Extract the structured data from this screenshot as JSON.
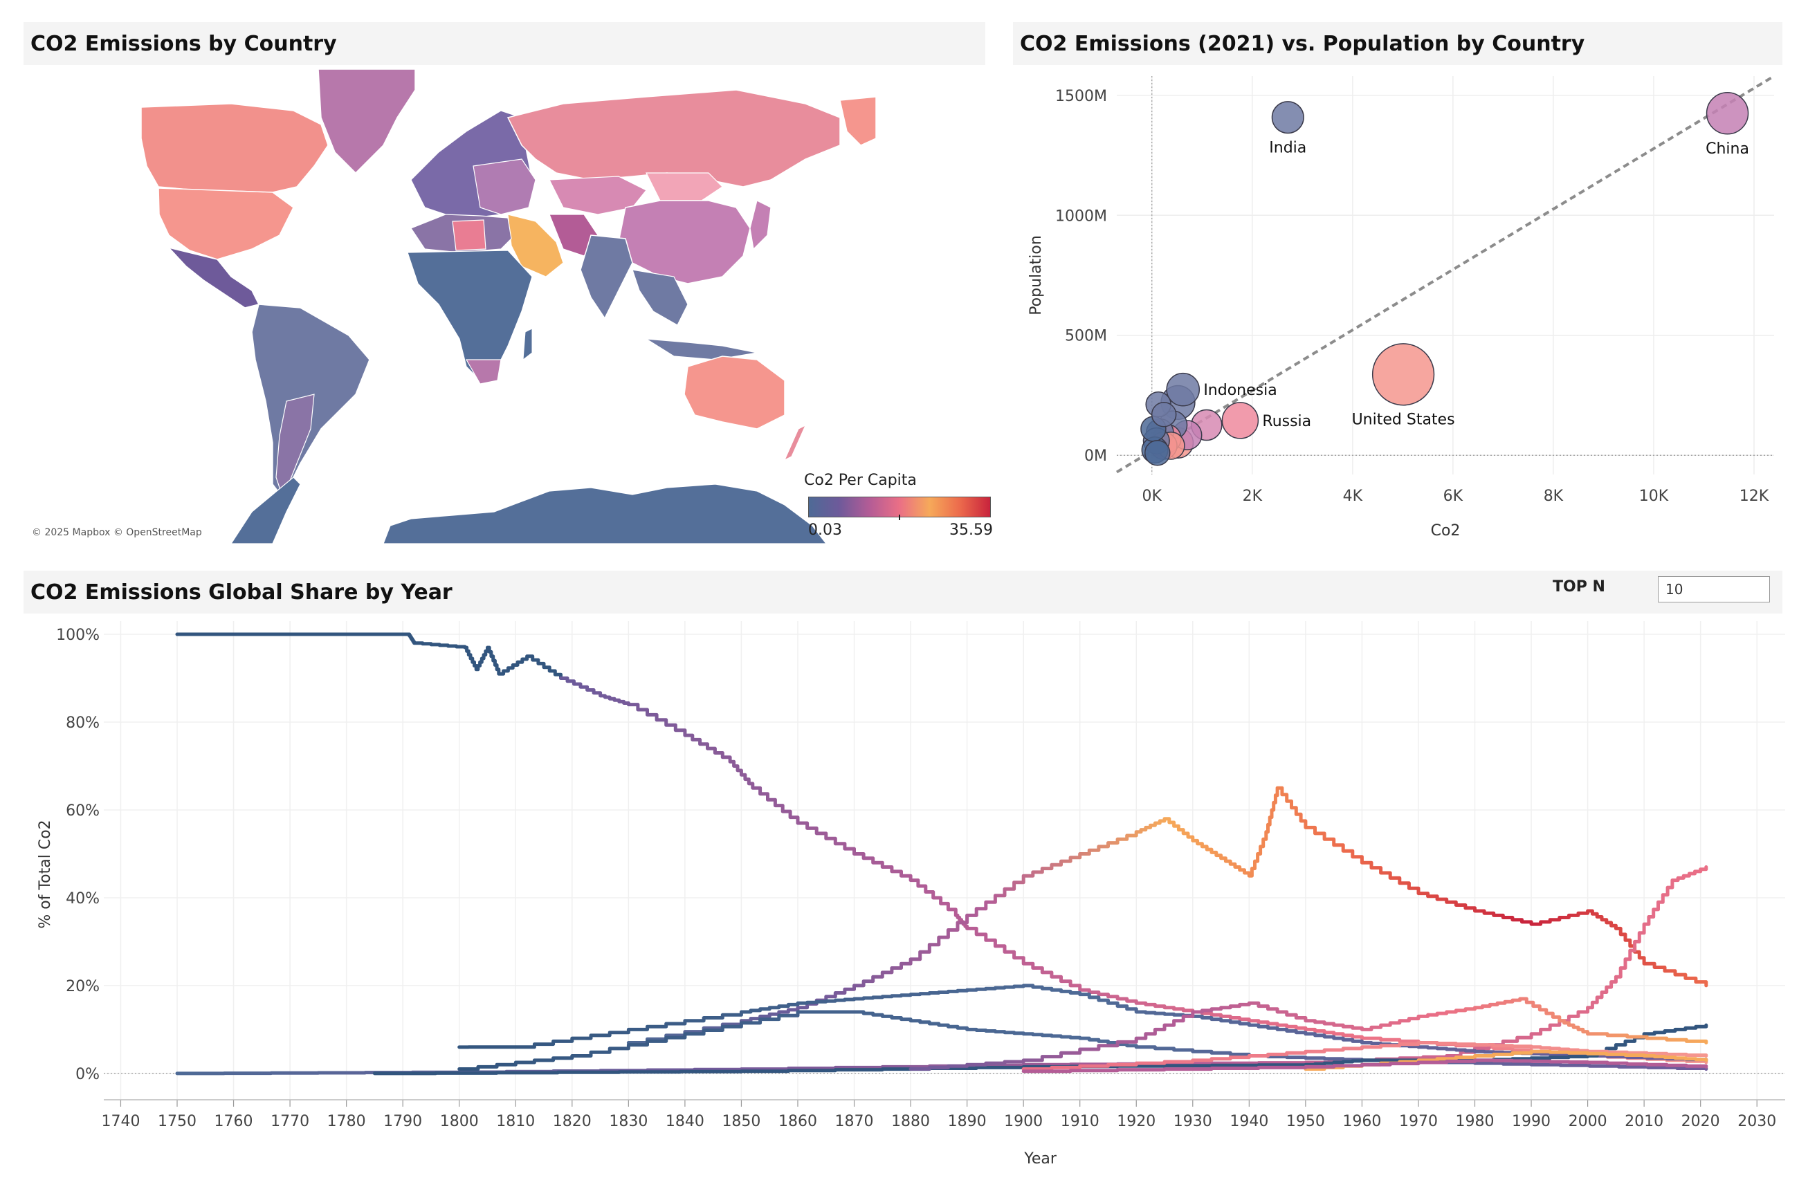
{
  "map_panel": {
    "title": "CO2 Emissions by Country",
    "copyright": "© 2025 Mapbox © OpenStreetMap",
    "legend": {
      "title": "Co2 Per Capita",
      "min": "0.03",
      "max": "35.59",
      "colors": [
        "#4e6a96",
        "#6e5a9a",
        "#b35c96",
        "#ea6f86",
        "#f6a95a",
        "#ec6a4c",
        "#c8233c"
      ]
    }
  },
  "scatter_panel": {
    "title": "CO2 Emissions (2021) vs. Population by Country",
    "chart_data": {
      "type": "scatter",
      "xlabel": "Co2",
      "ylabel": "Population",
      "x_ticks": [
        "0K",
        "2K",
        "4K",
        "6K",
        "8K",
        "10K",
        "12K"
      ],
      "y_ticks": [
        "0M",
        "500M",
        "1000M",
        "1500M"
      ],
      "xlim": [
        -700,
        12400
      ],
      "ylim": [
        -80,
        1580
      ],
      "trend_line": true,
      "points": [
        {
          "label": "China",
          "x": 11470,
          "y": 1425,
          "size": 1.0,
          "color": "#c480b4"
        },
        {
          "label": "India",
          "x": 2710,
          "y": 1408,
          "size": 0.55,
          "color": "#6f7aa3"
        },
        {
          "label": "United States",
          "x": 5010,
          "y": 337,
          "size": 1.9,
          "color": "#f5968e"
        },
        {
          "label": "Indonesia",
          "x": 620,
          "y": 274,
          "size": 0.6,
          "color": "#6f7aa3"
        },
        {
          "label": "Russia",
          "x": 1760,
          "y": 145,
          "size": 0.75,
          "color": "#ef8a9e"
        },
        {
          "label": "",
          "x": 520,
          "y": 220,
          "size": 0.65,
          "color": "#6f7aa3"
        },
        {
          "label": "",
          "x": 1090,
          "y": 126,
          "size": 0.5,
          "color": "#d78ab3"
        },
        {
          "label": "",
          "x": 700,
          "y": 84,
          "size": 0.45,
          "color": "#c480b4"
        },
        {
          "label": "",
          "x": 420,
          "y": 126,
          "size": 0.4,
          "color": "#6f7aa3"
        },
        {
          "label": "",
          "x": 520,
          "y": 52,
          "size": 0.5,
          "color": "#f5968e"
        },
        {
          "label": "",
          "x": 300,
          "y": 70,
          "size": 0.4,
          "color": "#ef8a9e"
        },
        {
          "label": "",
          "x": 160,
          "y": 95,
          "size": 0.35,
          "color": "#6f7aa3"
        },
        {
          "label": "",
          "x": 230,
          "y": 40,
          "size": 0.35,
          "color": "#e97d93"
        },
        {
          "label": "",
          "x": 90,
          "y": 60,
          "size": 0.3,
          "color": "#6f7aa3"
        },
        {
          "label": "",
          "x": 60,
          "y": 22,
          "size": 0.3,
          "color": "#4e6a96"
        },
        {
          "label": "",
          "x": 130,
          "y": 212,
          "size": 0.25,
          "color": "#6f7aa3"
        },
        {
          "label": "",
          "x": 240,
          "y": 170,
          "size": 0.22,
          "color": "#6f7aa3"
        },
        {
          "label": "",
          "x": 380,
          "y": 40,
          "size": 0.35,
          "color": "#f5968e"
        },
        {
          "label": "",
          "x": 30,
          "y": 110,
          "size": 0.25,
          "color": "#4e6a96"
        },
        {
          "label": "",
          "x": 110,
          "y": 10,
          "size": 0.25,
          "color": "#4e6a96"
        }
      ]
    }
  },
  "line_panel": {
    "title": "CO2 Emissions Global Share by Year",
    "topn": {
      "label": "TOP N",
      "value": "10"
    },
    "chart_data": {
      "type": "line",
      "xlabel": "Year",
      "ylabel": "% of Total Co2",
      "x_ticks": [
        "1740",
        "1750",
        "1760",
        "1770",
        "1780",
        "1790",
        "1800",
        "1810",
        "1820",
        "1830",
        "1840",
        "1850",
        "1860",
        "1870",
        "1880",
        "1890",
        "1900",
        "1910",
        "1920",
        "1930",
        "1940",
        "1950",
        "1960",
        "1970",
        "1980",
        "1990",
        "2000",
        "2010",
        "2020",
        "2030"
      ],
      "y_ticks": [
        "0%",
        "20%",
        "40%",
        "60%",
        "80%",
        "100%"
      ],
      "xlim": [
        1737,
        2035
      ],
      "ylim": [
        -6,
        103
      ],
      "series": [
        {
          "color_stops": [
            "#32557e"
          ],
          "points": [
            [
              1750,
              100
            ],
            [
              1791,
              100
            ],
            [
              1792,
              98
            ],
            [
              1801,
              97
            ],
            [
              1803,
              92
            ],
            [
              1805,
              97
            ],
            [
              1807,
              91
            ],
            [
              1812,
              95
            ],
            [
              1818,
              90
            ]
          ]
        },
        {
          "color_stops": [
            "#6a5a9a",
            "#b35c96",
            "#ea6f86",
            "#f5968e"
          ],
          "points": [
            [
              1818,
              90
            ],
            [
              1825,
              86
            ],
            [
              1830,
              84
            ],
            [
              1840,
              77
            ],
            [
              1848,
              71
            ],
            [
              1852,
              65
            ],
            [
              1860,
              57
            ],
            [
              1870,
              50
            ],
            [
              1880,
              44
            ],
            [
              1888,
              36
            ],
            [
              1890,
              33
            ],
            [
              1900,
              25
            ],
            [
              1910,
              19
            ],
            [
              1920,
              16
            ],
            [
              1930,
              14
            ],
            [
              1940,
              12
            ],
            [
              1950,
              10
            ],
            [
              1960,
              8
            ],
            [
              1980,
              6
            ],
            [
              2000,
              4
            ],
            [
              2021,
              2.5
            ]
          ]
        },
        {
          "color_stops": [
            "#4e6a96",
            "#6e5a9a",
            "#b35c96",
            "#f6a95a",
            "#ec6a4c",
            "#c8233c",
            "#ec6a4c"
          ],
          "points": [
            [
              1830,
              7
            ],
            [
              1850,
              12
            ],
            [
              1860,
              15
            ],
            [
              1870,
              20
            ],
            [
              1880,
              26
            ],
            [
              1890,
              36
            ],
            [
              1900,
              45
            ],
            [
              1910,
              50
            ],
            [
              1920,
              55
            ],
            [
              1925,
              58
            ],
            [
              1930,
              53
            ],
            [
              1935,
              49
            ],
            [
              1940,
              45
            ],
            [
              1943,
              55
            ],
            [
              1945,
              65
            ],
            [
              1950,
              56
            ],
            [
              1960,
              48
            ],
            [
              1970,
              41
            ],
            [
              1980,
              37
            ],
            [
              1990,
              34
            ],
            [
              2000,
              37
            ],
            [
              2005,
              33
            ],
            [
              2010,
              25
            ],
            [
              2021,
              20
            ]
          ]
        },
        {
          "color_stops": [
            "#4e6a96",
            "#6e5a9a",
            "#b35c96",
            "#ea6f86"
          ],
          "points": [
            [
              1750,
              0
            ],
            [
              1800,
              0.3
            ],
            [
              1850,
              1
            ],
            [
              1900,
              2
            ],
            [
              1950,
              2.5
            ],
            [
              1975,
              4
            ],
            [
              1990,
              9
            ],
            [
              2000,
              15
            ],
            [
              2005,
              22
            ],
            [
              2010,
              34
            ],
            [
              2015,
              44
            ],
            [
              2021,
              47
            ]
          ]
        },
        {
          "color_stops": [
            "#32557e",
            "#4e6a96",
            "#6e5a9a"
          ],
          "points": [
            [
              1800,
              6
            ],
            [
              1810,
              6
            ],
            [
              1830,
              10
            ],
            [
              1850,
              14
            ],
            [
              1860,
              16
            ],
            [
              1870,
              17
            ],
            [
              1880,
              18
            ],
            [
              1890,
              19
            ],
            [
              1900,
              20
            ],
            [
              1910,
              18
            ],
            [
              1920,
              14
            ],
            [
              1930,
              13
            ],
            [
              1940,
              11
            ],
            [
              1950,
              9
            ],
            [
              1960,
              7
            ],
            [
              1970,
              6
            ],
            [
              1980,
              5
            ],
            [
              1990,
              4.5
            ],
            [
              2000,
              4
            ],
            [
              2021,
              3
            ]
          ]
        },
        {
          "color_stops": [
            "#32557e",
            "#4e6a96",
            "#6e5a9a"
          ],
          "points": [
            [
              1800,
              1
            ],
            [
              1820,
              4
            ],
            [
              1840,
              9
            ],
            [
              1860,
              14
            ],
            [
              1870,
              14
            ],
            [
              1880,
              12
            ],
            [
              1890,
              10
            ],
            [
              1900,
              9
            ],
            [
              1910,
              8
            ],
            [
              1920,
              6
            ],
            [
              1940,
              4
            ],
            [
              1960,
              3
            ],
            [
              1990,
              2
            ],
            [
              2021,
              1
            ]
          ]
        },
        {
          "color_stops": [
            "#32557e"
          ],
          "points": [
            [
              1785,
              0
            ],
            [
              1850,
              0.5
            ],
            [
              1900,
              1.5
            ],
            [
              1950,
              2
            ],
            [
              1960,
              3
            ],
            [
              1980,
              3
            ],
            [
              2000,
              4
            ],
            [
              2010,
              9
            ],
            [
              2021,
              11
            ]
          ]
        },
        {
          "color_stops": [
            "#6e5a9a",
            "#b35c96",
            "#ea6f86",
            "#f6a95a"
          ],
          "points": [
            [
              1880,
              1
            ],
            [
              1900,
              3
            ],
            [
              1920,
              8
            ],
            [
              1930,
              14
            ],
            [
              1940,
              16
            ],
            [
              1950,
              12
            ],
            [
              1960,
              10
            ],
            [
              1970,
              13
            ],
            [
              1980,
              15
            ],
            [
              1988,
              17
            ],
            [
              1995,
              12
            ],
            [
              2000,
              9
            ],
            [
              2021,
              7
            ]
          ]
        },
        {
          "color_stops": [
            "#ea6f86",
            "#f5968e"
          ],
          "points": [
            [
              1900,
              1
            ],
            [
              1930,
              3
            ],
            [
              1950,
              5
            ],
            [
              1970,
              7
            ],
            [
              1990,
              6
            ],
            [
              2000,
              5
            ],
            [
              2021,
              4
            ]
          ]
        },
        {
          "color_stops": [
            "#f6a95a"
          ],
          "points": [
            [
              1950,
              1
            ],
            [
              1970,
              3
            ],
            [
              1990,
              5
            ],
            [
              2010,
              4
            ],
            [
              2021,
              3
            ]
          ]
        },
        {
          "color_stops": [
            "#b35c96"
          ],
          "points": [
            [
              1900,
              0.5
            ],
            [
              1950,
              1.5
            ],
            [
              1980,
              3
            ],
            [
              2000,
              2.5
            ],
            [
              2021,
              1.5
            ]
          ]
        }
      ]
    }
  }
}
